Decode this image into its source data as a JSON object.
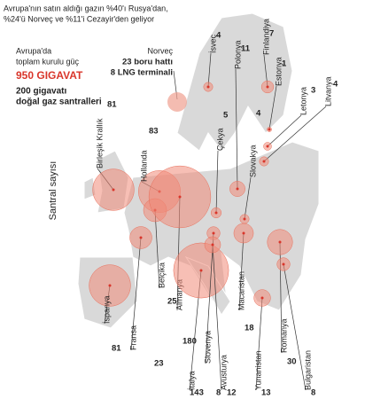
{
  "header": {
    "line1": "Avrupa'nın satın aldığı gazın %40'ı Rusya'dan,",
    "line2": "%24'ü Norveç ve %11'i Cezayir'den geliyor"
  },
  "legend": {
    "line1": "Avrupa'da",
    "line2": "toplam kurulu güç",
    "total": "950 GIGAVAT",
    "line3": "200 gigavatı",
    "line4": "doğal gaz santralleri"
  },
  "norway": {
    "name": "Norveç",
    "pipelines": "23 boru hattı",
    "lng": "8 LNG terminali"
  },
  "axis_label": "Santral sayısı",
  "countries": [
    {
      "name": "İsveç",
      "count": 4
    },
    {
      "name": "Polonya",
      "count": 11
    },
    {
      "name": "Finlandiya",
      "count": 7
    },
    {
      "name": "Estonya",
      "count": 1
    },
    {
      "name": "Letonya",
      "count": 3
    },
    {
      "name": "Litvanya",
      "count": 4
    },
    {
      "name": "Birleşik Krallık",
      "count": 81
    },
    {
      "name": "Hollanda",
      "count": 83
    },
    {
      "name": "Çekya",
      "count": 5
    },
    {
      "name": "Slovakya",
      "count": 4
    },
    {
      "name": "Belçika",
      "count": 25
    },
    {
      "name": "Almanya",
      "count": 180
    },
    {
      "name": "İspanya",
      "count": 81
    },
    {
      "name": "Fransa",
      "count": 23
    },
    {
      "name": "İtalya",
      "count": 143
    },
    {
      "name": "Slovenya",
      "count": 8
    },
    {
      "name": "Avusturya",
      "count": 12
    },
    {
      "name": "Macaristan",
      "count": 18
    },
    {
      "name": "Yunanistan",
      "count": 13
    },
    {
      "name": "Romanya",
      "count": 30
    },
    {
      "name": "Bulgaristan",
      "count": 8
    }
  ]
}
